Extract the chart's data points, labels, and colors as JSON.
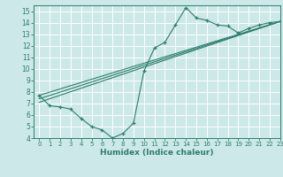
{
  "xlabel": "Humidex (Indice chaleur)",
  "xlim": [
    -0.5,
    23
  ],
  "ylim": [
    4,
    15.5
  ],
  "yticks": [
    4,
    5,
    6,
    7,
    8,
    9,
    10,
    11,
    12,
    13,
    14,
    15
  ],
  "xticks": [
    0,
    1,
    2,
    3,
    4,
    5,
    6,
    7,
    8,
    9,
    10,
    11,
    12,
    13,
    14,
    15,
    16,
    17,
    18,
    19,
    20,
    21,
    22,
    23
  ],
  "bg_color": "#cce8e8",
  "grid_color": "#afd4d4",
  "line_color": "#2e7d6e",
  "line1_x": [
    0,
    1,
    2,
    3,
    4,
    5,
    6,
    7,
    8,
    9,
    10,
    11,
    12,
    13,
    14,
    15,
    16,
    17,
    18,
    19,
    20,
    21,
    22,
    23
  ],
  "line1_y": [
    7.7,
    6.8,
    6.7,
    6.5,
    5.7,
    5.0,
    4.7,
    4.0,
    4.4,
    5.3,
    9.8,
    11.8,
    12.3,
    13.8,
    15.3,
    14.4,
    14.2,
    13.8,
    13.7,
    13.1,
    13.5,
    13.8,
    14.0,
    14.1
  ],
  "line2_x": [
    0,
    23
  ],
  "line2_y": [
    7.7,
    14.1
  ],
  "line3_x": [
    0,
    23
  ],
  "line3_y": [
    7.4,
    14.1
  ],
  "line4_x": [
    0,
    23
  ],
  "line4_y": [
    7.1,
    14.1
  ]
}
